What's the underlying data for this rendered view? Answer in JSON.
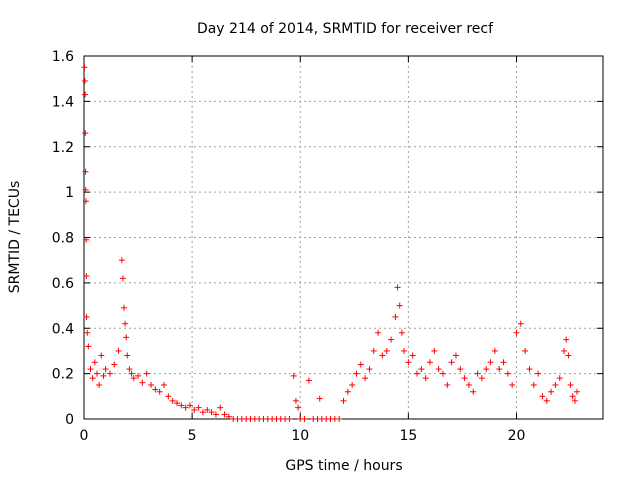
{
  "chart_data": {
    "type": "scatter",
    "title": "Day 214 of 2014, SRMTID for receiver recf",
    "xlabel": "GPS time / hours",
    "ylabel": "SRMTID / TECUs",
    "xlim": [
      0,
      24
    ],
    "ylim": [
      0,
      1.6
    ],
    "xticks": [
      0,
      5,
      10,
      15,
      20
    ],
    "yticks": [
      0,
      0.2,
      0.4,
      0.6,
      0.8,
      1,
      1.2,
      1.4,
      1.6
    ],
    "grid": true,
    "marker": "+",
    "color": "#ff0000",
    "series": [
      {
        "name": "SRMTID",
        "x": [
          0.02,
          0.04,
          0.05,
          0.06,
          0.07,
          0.08,
          0.09,
          0.1,
          0.11,
          0.12,
          0.15,
          0.2,
          0.3,
          0.4,
          0.5,
          0.6,
          0.7,
          0.8,
          0.9,
          1.0,
          1.2,
          1.4,
          1.6,
          1.75,
          1.8,
          1.85,
          1.9,
          1.95,
          2.0,
          2.1,
          2.2,
          2.3,
          2.5,
          2.7,
          2.9,
          3.1,
          3.3,
          3.5,
          3.7,
          3.9,
          4.1,
          4.3,
          4.5,
          4.7,
          4.9,
          5.1,
          5.3,
          5.5,
          5.7,
          5.9,
          6.1,
          6.3,
          6.5,
          6.7,
          6.9,
          7.1,
          7.3,
          7.5,
          7.7,
          7.9,
          8.1,
          8.3,
          8.5,
          8.7,
          8.9,
          9.1,
          9.3,
          9.5,
          9.7,
          9.8,
          9.9,
          10.0,
          10.2,
          10.4,
          10.6,
          10.8,
          10.9,
          11.0,
          11.2,
          11.4,
          11.6,
          11.8,
          12.0,
          12.2,
          12.4,
          12.6,
          12.8,
          13.0,
          13.2,
          13.4,
          13.6,
          13.8,
          14.0,
          14.2,
          14.4,
          14.5,
          14.6,
          14.7,
          14.8,
          15.0,
          15.2,
          15.4,
          15.6,
          15.8,
          16.0,
          16.2,
          16.4,
          16.6,
          16.8,
          17.0,
          17.2,
          17.4,
          17.6,
          17.8,
          18.0,
          18.2,
          18.4,
          18.6,
          18.8,
          19.0,
          19.2,
          19.4,
          19.6,
          19.8,
          20.0,
          20.2,
          20.4,
          20.6,
          20.8,
          21.0,
          21.2,
          21.4,
          21.6,
          21.8,
          22.0,
          22.2,
          22.3,
          22.4,
          22.5,
          22.6,
          22.7,
          22.8
        ],
        "y": [
          1.55,
          1.49,
          1.43,
          1.26,
          1.09,
          1.01,
          0.96,
          0.79,
          0.63,
          0.45,
          0.38,
          0.32,
          0.22,
          0.18,
          0.25,
          0.2,
          0.15,
          0.28,
          0.19,
          0.22,
          0.2,
          0.24,
          0.3,
          0.7,
          0.62,
          0.49,
          0.42,
          0.36,
          0.28,
          0.22,
          0.2,
          0.18,
          0.19,
          0.16,
          0.2,
          0.15,
          0.13,
          0.12,
          0.15,
          0.1,
          0.08,
          0.07,
          0.06,
          0.05,
          0.06,
          0.04,
          0.05,
          0.03,
          0.04,
          0.03,
          0.02,
          0.05,
          0.02,
          0.01,
          0.0,
          0.0,
          0.0,
          0.0,
          0.0,
          0.0,
          0.0,
          0.0,
          0.0,
          0.0,
          0.0,
          0.0,
          0.0,
          0.0,
          0.19,
          0.08,
          0.05,
          0.0,
          0.0,
          0.17,
          0.0,
          0.0,
          0.09,
          0.0,
          0.0,
          0.0,
          0.0,
          0.0,
          0.08,
          0.12,
          0.15,
          0.2,
          0.24,
          0.18,
          0.22,
          0.3,
          0.38,
          0.28,
          0.3,
          0.35,
          0.45,
          0.58,
          0.5,
          0.38,
          0.3,
          0.25,
          0.28,
          0.2,
          0.22,
          0.18,
          0.25,
          0.3,
          0.22,
          0.2,
          0.15,
          0.25,
          0.28,
          0.22,
          0.18,
          0.15,
          0.12,
          0.2,
          0.18,
          0.22,
          0.25,
          0.3,
          0.22,
          0.25,
          0.2,
          0.15,
          0.38,
          0.42,
          0.3,
          0.22,
          0.15,
          0.2,
          0.1,
          0.08,
          0.12,
          0.15,
          0.18,
          0.3,
          0.35,
          0.28,
          0.15,
          0.1,
          0.08,
          0.12
        ]
      }
    ]
  }
}
